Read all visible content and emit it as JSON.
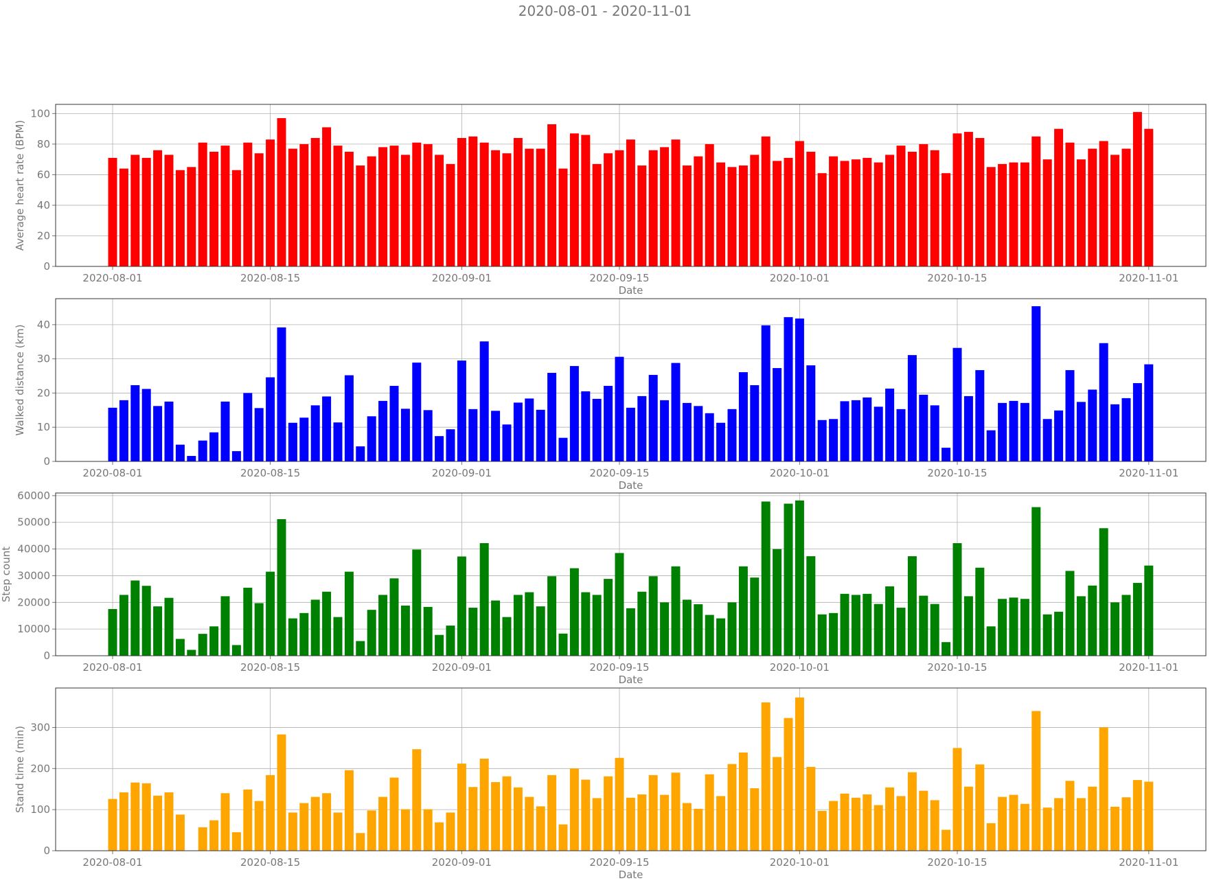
{
  "suptitle": "2020-08-01 - 2020-11-01",
  "x_tick_labels": [
    "2020-08-01",
    "2020-08-15",
    "2020-09-01",
    "2020-09-15",
    "2020-10-01",
    "2020-10-15",
    "2020-11-01"
  ],
  "chart_data": [
    {
      "type": "bar",
      "xlabel": "Date",
      "ylabel": "Average heart rate (BPM)",
      "color": "#ff0000",
      "ylim": [
        0,
        106
      ],
      "yticks": [
        0,
        20,
        40,
        60,
        80,
        100
      ],
      "grid": true,
      "x_start": "2020-08-01",
      "values": [
        71,
        64,
        73,
        71,
        76,
        73,
        63,
        65,
        81,
        75,
        79,
        63,
        81,
        74,
        83,
        97,
        77,
        80,
        84,
        91,
        79,
        75,
        66,
        72,
        78,
        79,
        73,
        81,
        80,
        73,
        67,
        84,
        85,
        81,
        76,
        74,
        84,
        77,
        77,
        93,
        64,
        87,
        86,
        67,
        74,
        76,
        83,
        66,
        76,
        78,
        83,
        66,
        72,
        80,
        68,
        65,
        66,
        73,
        85,
        69,
        71,
        82,
        75,
        61,
        72,
        69,
        70,
        71,
        68,
        73,
        79,
        75,
        80,
        76,
        61,
        87,
        88,
        84,
        65,
        67,
        68,
        68,
        85,
        70,
        90,
        81,
        70,
        77,
        82,
        73,
        77,
        101,
        90
      ]
    },
    {
      "type": "bar",
      "xlabel": "Date",
      "ylabel": "Walked distance (km)",
      "color": "#0000ff",
      "ylim": [
        0,
        47.6
      ],
      "yticks": [
        0,
        10,
        20,
        30,
        40
      ],
      "grid": true,
      "x_start": "2020-08-01",
      "values": [
        15.7,
        17.9,
        22.3,
        21.2,
        16.2,
        17.5,
        4.9,
        1.6,
        6.1,
        8.5,
        17.5,
        3.0,
        20.0,
        15.6,
        24.6,
        39.2,
        11.3,
        12.8,
        16.4,
        19.0,
        11.4,
        25.2,
        4.4,
        13.2,
        17.7,
        22.1,
        15.4,
        28.9,
        15.0,
        7.4,
        9.4,
        29.5,
        15.3,
        35.1,
        14.8,
        10.8,
        17.2,
        18.4,
        15.1,
        25.9,
        6.9,
        27.9,
        20.5,
        18.3,
        22.1,
        30.6,
        15.7,
        19.1,
        25.3,
        17.9,
        28.8,
        17.1,
        16.2,
        14.1,
        11.3,
        15.3,
        26.1,
        22.3,
        39.8,
        27.3,
        42.2,
        41.8,
        28.1,
        12.1,
        12.4,
        17.6,
        17.9,
        18.7,
        16.0,
        21.3,
        15.3,
        31.1,
        19.5,
        16.4,
        4.0,
        33.2,
        19.1,
        26.7,
        9.1,
        17.1,
        17.7,
        17.1,
        45.4,
        12.4,
        14.9,
        26.7,
        17.4,
        21.0,
        34.6,
        16.7,
        18.5,
        22.9,
        28.4
      ]
    },
    {
      "type": "bar",
      "xlabel": "Date",
      "ylabel": "Step count",
      "color": "#008000",
      "ylim": [
        0,
        61000
      ],
      "yticks": [
        0,
        10000,
        20000,
        30000,
        40000,
        50000,
        60000
      ],
      "grid": true,
      "x_start": "2020-08-01",
      "values": [
        17500,
        22800,
        28200,
        26200,
        18500,
        21700,
        6300,
        2200,
        8200,
        11000,
        22300,
        4000,
        25500,
        19700,
        31500,
        51200,
        14000,
        16000,
        21000,
        24000,
        14500,
        31500,
        5500,
        17200,
        22800,
        29000,
        18800,
        39800,
        18300,
        7800,
        11300,
        37200,
        18000,
        42200,
        20700,
        14500,
        22800,
        23800,
        18500,
        29800,
        8300,
        32800,
        23800,
        22800,
        28800,
        38500,
        17800,
        24000,
        29800,
        20000,
        33500,
        21000,
        19300,
        15300,
        14000,
        20000,
        33500,
        29300,
        57800,
        40000,
        57000,
        58200,
        37300,
        15500,
        16000,
        23200,
        22800,
        23200,
        19400,
        26000,
        18000,
        37300,
        22500,
        19400,
        5100,
        42200,
        22300,
        33000,
        11000,
        21300,
        21800,
        21300,
        55700,
        15500,
        16500,
        31800,
        22300,
        26300,
        47800,
        20000,
        22800,
        27300,
        33800
      ]
    },
    {
      "type": "bar",
      "xlabel": "Date",
      "ylabel": "Stand time (min)",
      "color": "#ffa500",
      "ylim": [
        0,
        396
      ],
      "yticks": [
        0,
        100,
        200,
        300
      ],
      "grid": true,
      "x_start": "2020-08-01",
      "values": [
        126,
        142,
        166,
        164,
        134,
        142,
        88,
        0,
        57,
        74,
        140,
        45,
        149,
        121,
        184,
        283,
        93,
        116,
        131,
        140,
        93,
        196,
        43,
        98,
        131,
        178,
        101,
        247,
        101,
        69,
        93,
        212,
        155,
        224,
        167,
        181,
        154,
        131,
        108,
        184,
        64,
        200,
        173,
        128,
        181,
        226,
        129,
        137,
        184,
        136,
        190,
        116,
        102,
        186,
        133,
        211,
        239,
        152,
        361,
        228,
        323,
        373,
        204,
        97,
        121,
        139,
        129,
        137,
        111,
        154,
        133,
        191,
        146,
        123,
        51,
        250,
        156,
        210,
        67,
        131,
        136,
        114,
        340,
        105,
        128,
        170,
        128,
        156,
        300,
        107,
        130,
        172,
        168
      ]
    }
  ]
}
